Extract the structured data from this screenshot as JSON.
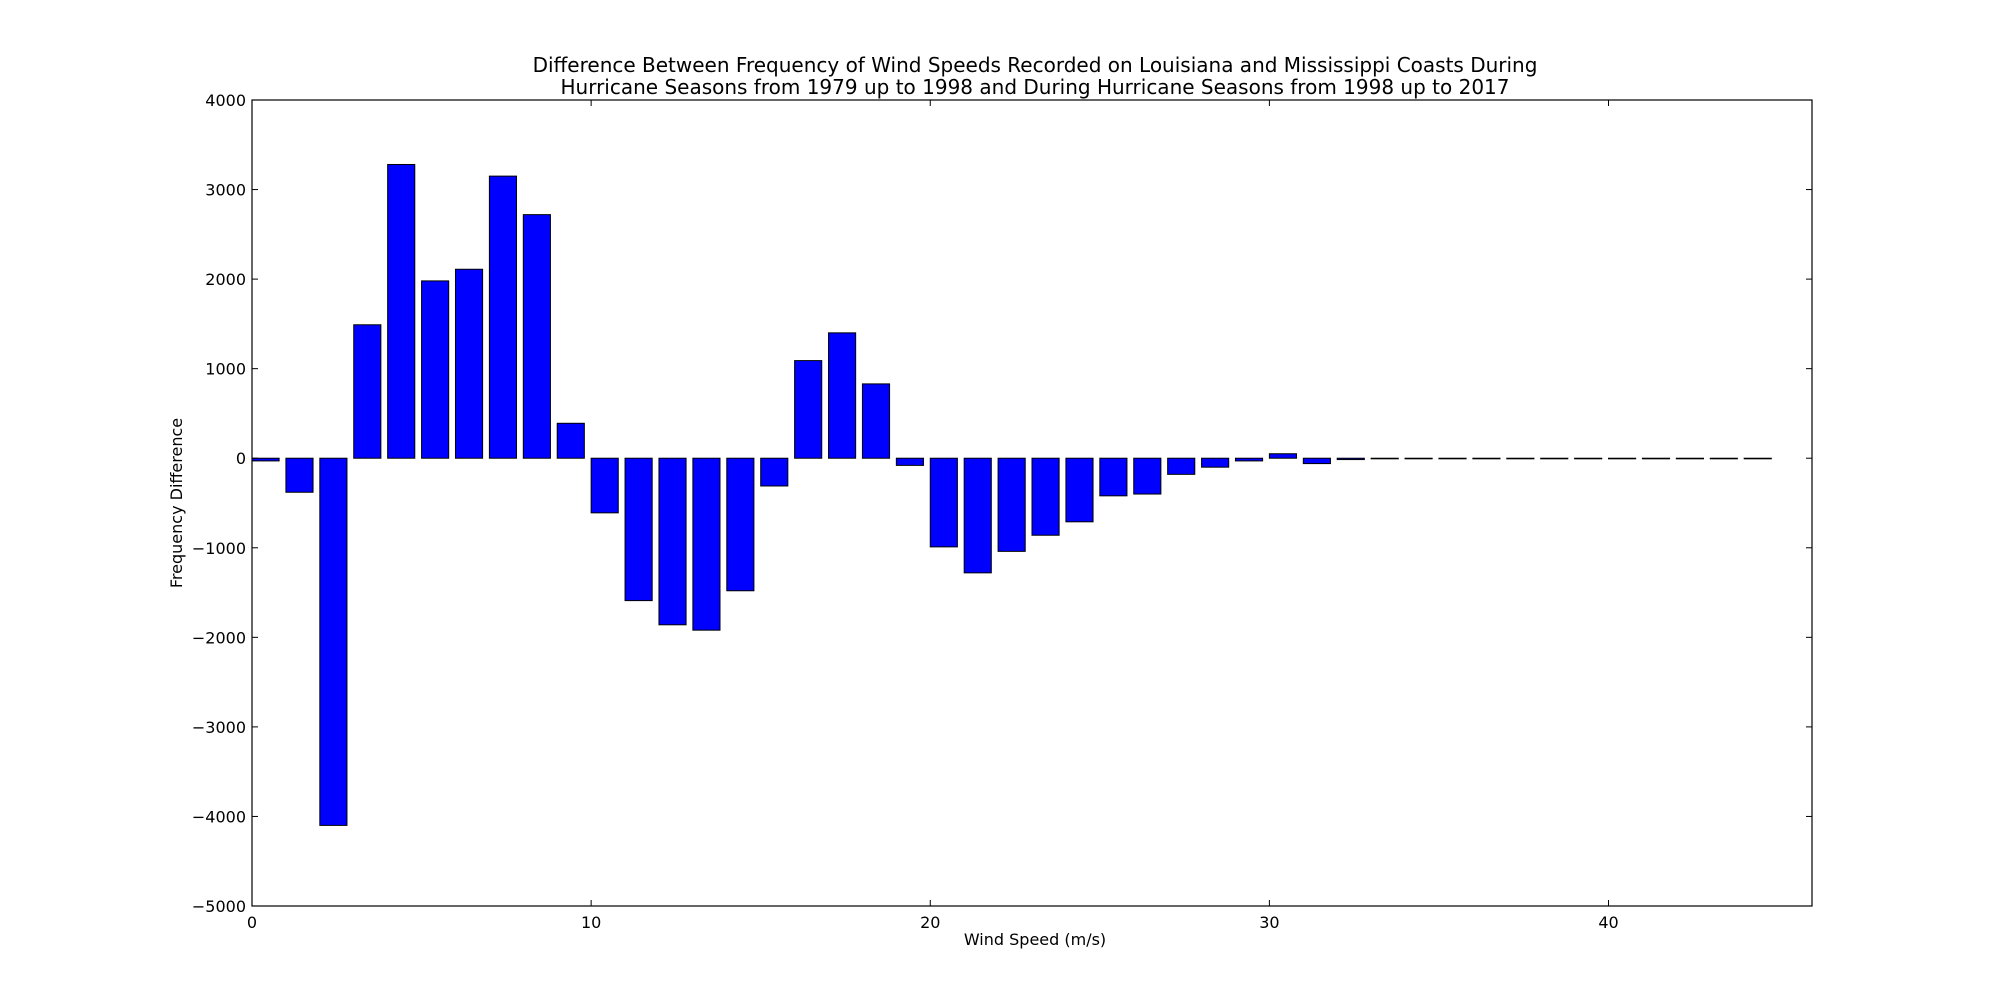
{
  "chart_data": {
    "type": "bar",
    "title_lines": [
      "Difference Between Frequency of Wind Speeds Recorded on Louisiana and Mississippi Coasts During",
      "Hurricane Seasons from 1979 up to 1998 and During Hurricane Seasons from 1998 up to 2017"
    ],
    "xlabel": "Wind Speed (m/s)",
    "ylabel": "Frequency Difference",
    "xlim": [
      0,
      46
    ],
    "ylim": [
      -5000,
      4000
    ],
    "xticks": [
      0,
      10,
      20,
      30,
      40
    ],
    "yticks": [
      -5000,
      -4000,
      -3000,
      -2000,
      -1000,
      0,
      1000,
      2000,
      3000,
      4000
    ],
    "xtick_labels": [
      "0",
      "10",
      "20",
      "30",
      "40"
    ],
    "ytick_labels": [
      "−5000",
      "−4000",
      "−3000",
      "−2000",
      "−1000",
      "0",
      "1000",
      "2000",
      "3000",
      "4000"
    ],
    "bar_width": 0.8,
    "bar_color": "#0000ff",
    "edge_color": "#000000",
    "x": [
      0,
      1,
      2,
      3,
      4,
      5,
      6,
      7,
      8,
      9,
      10,
      11,
      12,
      13,
      14,
      15,
      16,
      17,
      18,
      19,
      20,
      21,
      22,
      23,
      24,
      25,
      26,
      27,
      28,
      29,
      30,
      31,
      32,
      33,
      34,
      35,
      36,
      37,
      38,
      39,
      40,
      41,
      42,
      43,
      44
    ],
    "values": [
      -30,
      -380,
      -4100,
      1490,
      3280,
      1980,
      2110,
      3150,
      2720,
      390,
      -610,
      -1590,
      -1860,
      -1920,
      -1480,
      -310,
      1090,
      1400,
      830,
      -80,
      -990,
      -1280,
      -1040,
      -860,
      -710,
      -420,
      -400,
      -180,
      -100,
      -30,
      50,
      -60,
      -15,
      -5,
      -3,
      -3,
      -2,
      -2,
      -2,
      -2,
      -2,
      -2,
      -2,
      -2,
      -2
    ],
    "grid": false,
    "legend": "none"
  }
}
